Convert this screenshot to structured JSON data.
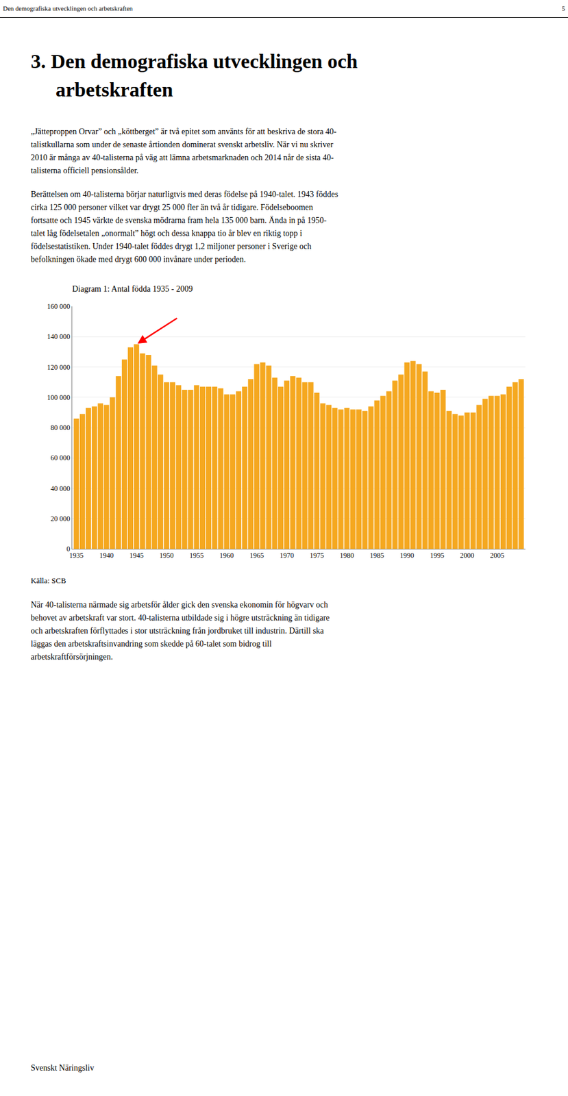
{
  "page": {
    "header_text": "Den demografiska utvecklingen och arbetskraften",
    "page_number": "5",
    "heading": [
      "3.  Den demografiska utvecklingen och",
      "arbetskraften"
    ],
    "paragraphs_before": [
      [
        "„Jätteproppen Orvar” och „köttberget” är två epitet som använts för att beskriva de stora 40-",
        "talistkullarna som under de senaste årtionden dominerat svenskt arbetsliv. När vi nu skriver",
        "2010 är många av 40-talisterna på väg att lämna arbetsmarknaden och 2014 når de sista 40-",
        "talisterna officiell pensionsålder."
      ],
      [
        "Berättelsen om 40-talisterna börjar naturligtvis med deras födelse på 1940-talet. 1943 föddes",
        "cirka 125 000 personer vilket var drygt 25 000 fler än två år tidigare. Födelseboomen",
        "fortsatte och 1945 värkte de svenska mödrarna fram hela 135 000 barn. Ända in på 1950-",
        "talet låg födelsetalen „onormalt” högt och dessa knappa tio år blev en riktig topp i",
        "födelsestatistiken. Under 1940-talet föddes drygt 1,2 miljoner personer i Sverige och",
        "befolkningen ökade med drygt 600 000 invånare under perioden."
      ]
    ],
    "source": "Källa: SCB",
    "paragraphs_after": [
      [
        "När 40-talisterna närmade sig arbetsför ålder gick den svenska ekonomin för högvarv och",
        "behovet av arbetskraft var stort. 40-talisterna utbildade sig i högre utsträckning än tidigare",
        "och arbetskraften förflyttades i stor utsträckning från jordbruket till industrin. Därtill ska",
        "läggas den arbetskraftsinvandring som skedde på 60-talet som bidrog till",
        "arbetskraftförsörjningen."
      ]
    ],
    "footer": "Svenskt Näringsliv"
  },
  "chart_data": {
    "type": "bar",
    "title": "Diagram 1: Antal födda 1935 - 2009",
    "x": [
      1935,
      1936,
      1937,
      1938,
      1939,
      1940,
      1941,
      1942,
      1943,
      1944,
      1945,
      1946,
      1947,
      1948,
      1949,
      1950,
      1951,
      1952,
      1953,
      1954,
      1955,
      1956,
      1957,
      1958,
      1959,
      1960,
      1961,
      1962,
      1963,
      1964,
      1965,
      1966,
      1967,
      1968,
      1969,
      1970,
      1971,
      1972,
      1973,
      1974,
      1975,
      1976,
      1977,
      1978,
      1979,
      1980,
      1981,
      1982,
      1983,
      1984,
      1985,
      1986,
      1987,
      1988,
      1989,
      1990,
      1991,
      1992,
      1993,
      1994,
      1995,
      1996,
      1997,
      1998,
      1999,
      2000,
      2001,
      2002,
      2003,
      2004,
      2005,
      2006,
      2007,
      2008,
      2009
    ],
    "values": [
      86000,
      89000,
      93000,
      94000,
      96000,
      95000,
      100000,
      114000,
      125000,
      133000,
      135000,
      129000,
      128000,
      121000,
      115000,
      110000,
      110000,
      108000,
      105000,
      105000,
      108000,
      107000,
      107000,
      107000,
      106000,
      102000,
      102000,
      104000,
      107000,
      112000,
      122000,
      123000,
      121000,
      113000,
      107000,
      111000,
      114000,
      113000,
      110000,
      110000,
      103000,
      96000,
      95000,
      93000,
      92000,
      93000,
      92000,
      92000,
      91000,
      94000,
      98000,
      101000,
      104000,
      111000,
      115000,
      123000,
      124000,
      122000,
      117000,
      104000,
      103000,
      105000,
      91000,
      89000,
      88000,
      90000,
      90000,
      95000,
      99000,
      101000,
      101000,
      102000,
      107000,
      110000,
      112000
    ],
    "color": "#F5A820",
    "xlim": [
      1934.3,
      2009.7
    ],
    "xticks": [
      1935,
      1940,
      1945,
      1950,
      1955,
      1960,
      1965,
      1970,
      1975,
      1980,
      1985,
      1990,
      1995,
      2000,
      2005
    ],
    "ylim": [
      0,
      160000
    ],
    "yticks": [
      0,
      {
        "value": 20000,
        "label": "20 000"
      },
      {
        "value": 40000,
        "label": "40 000"
      },
      {
        "value": 60000,
        "label": "60 000"
      },
      {
        "value": 80000,
        "label": "80 000"
      },
      {
        "value": 100000,
        "label": "100 000"
      },
      {
        "value": 120000,
        "label": "120 000"
      },
      {
        "value": 140000,
        "label": "140 000"
      },
      {
        "value": 160000,
        "label": "160 000"
      }
    ],
    "grid": true,
    "annotations": [
      {
        "x": 1945,
        "arrow": true,
        "color": "red"
      }
    ]
  }
}
